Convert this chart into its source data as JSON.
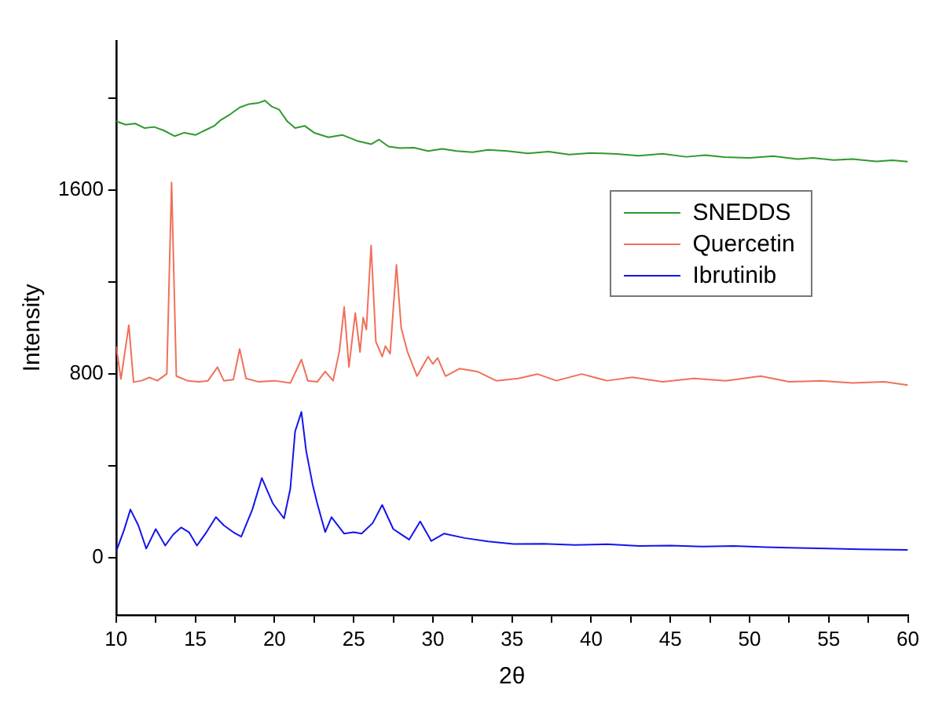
{
  "chart_data": {
    "type": "line",
    "xlabel": "2θ",
    "ylabel": "Intensity",
    "xlim": [
      10,
      60
    ],
    "ylim": [
      -250,
      2250
    ],
    "xticks": [
      10,
      {
        "value": 12.5,
        "label": null
      },
      15,
      {
        "value": 17.5,
        "label": null
      },
      20,
      {
        "value": 22.5,
        "label": null
      },
      25,
      {
        "value": 27.5,
        "label": null
      },
      30,
      {
        "value": 32.5,
        "label": null
      },
      35,
      {
        "value": 37.5,
        "label": null
      },
      40,
      {
        "value": 42.5,
        "label": null
      },
      45,
      {
        "value": 47.5,
        "label": null
      },
      50,
      {
        "value": 52.5,
        "label": null
      },
      55,
      {
        "value": 57.5,
        "label": null
      },
      60
    ],
    "yticks": [
      0,
      {
        "value": 400,
        "label": null
      },
      800,
      {
        "value": 1200,
        "label": null
      },
      1600,
      {
        "value": 2000,
        "label": null
      }
    ],
    "grid": false,
    "legend": "right",
    "marker": "none",
    "line_style": "solid",
    "series": [
      {
        "name": "SNEDDS",
        "color": "#2e9a2e",
        "x": [
          10,
          10.6,
          11.2,
          11.8,
          12.4,
          13,
          13.7,
          14.3,
          15,
          15.6,
          16.2,
          16.6,
          17.2,
          17.8,
          18.4,
          19,
          19.4,
          19.8,
          20.3,
          20.8,
          21.3,
          21.9,
          22.5,
          23.4,
          24.3,
          25.2,
          26.1,
          26.6,
          27.2,
          27.9,
          28.8,
          29.7,
          30.6,
          31.5,
          32.5,
          33.5,
          34.7,
          36,
          37.3,
          38.6,
          40,
          41.6,
          43,
          44.5,
          46,
          47.2,
          48.4,
          50,
          51.5,
          53,
          54,
          55.3,
          56.5,
          58,
          59,
          60
        ],
        "values": [
          1900,
          1885,
          1890,
          1870,
          1875,
          1860,
          1835,
          1850,
          1840,
          1860,
          1880,
          1905,
          1930,
          1960,
          1975,
          1980,
          1990,
          1965,
          1950,
          1900,
          1870,
          1880,
          1850,
          1830,
          1840,
          1815,
          1800,
          1820,
          1790,
          1783,
          1785,
          1770,
          1780,
          1770,
          1765,
          1775,
          1770,
          1760,
          1768,
          1755,
          1762,
          1757,
          1750,
          1758,
          1745,
          1752,
          1744,
          1740,
          1748,
          1735,
          1740,
          1731,
          1735,
          1725,
          1730,
          1724
        ]
      },
      {
        "name": "Quercetin",
        "color": "#f0705a",
        "x": [
          10,
          10.3,
          10.8,
          11.1,
          11.6,
          12.1,
          12.6,
          13.2,
          13.5,
          13.8,
          14.5,
          15.2,
          15.8,
          16.4,
          16.8,
          17.4,
          17.8,
          18.2,
          19,
          20,
          21,
          21.7,
          22.1,
          22.7,
          23.2,
          23.7,
          24.1,
          24.4,
          24.7,
          25.1,
          25.4,
          25.6,
          25.8,
          26.1,
          26.4,
          26.8,
          27,
          27.3,
          27.7,
          28,
          28.4,
          29,
          29.7,
          30,
          30.3,
          30.8,
          31.7,
          32.8,
          34,
          35.4,
          36.6,
          37.8,
          39.4,
          41,
          42.6,
          44.5,
          46.5,
          48.5,
          50.7,
          52.5,
          54.5,
          56.5,
          58.5,
          60
        ],
        "values": [
          920,
          777,
          1012,
          764,
          770,
          784,
          770,
          800,
          1633,
          790,
          770,
          765,
          770,
          829,
          770,
          775,
          908,
          780,
          765,
          770,
          760,
          862,
          770,
          765,
          810,
          770,
          900,
          1091,
          830,
          1065,
          895,
          1045,
          993,
          1359,
          940,
          875,
          921,
          888,
          1274,
          1000,
          895,
          790,
          875,
          843,
          869,
          790,
          823,
          810,
          770,
          780,
          799,
          770,
          799,
          770,
          785,
          765,
          780,
          770,
          790,
          765,
          770,
          760,
          765,
          751
        ]
      },
      {
        "name": "Ibrutinib",
        "color": "#1414ee",
        "x": [
          10,
          10.5,
          10.9,
          11.4,
          11.9,
          12.5,
          13.1,
          13.6,
          14.1,
          14.6,
          15.1,
          15.7,
          16.3,
          16.8,
          17.4,
          17.9,
          18.6,
          19.2,
          19.9,
          20.6,
          21,
          21.3,
          21.7,
          22,
          22.4,
          22.7,
          23.2,
          23.6,
          24.4,
          25,
          25.5,
          26.2,
          26.8,
          27.5,
          28.5,
          29.2,
          29.9,
          30.7,
          32,
          33.5,
          35.1,
          37,
          39,
          41,
          43,
          45,
          47,
          49,
          51,
          53,
          54.9,
          57,
          60
        ],
        "values": [
          26,
          120,
          209,
          140,
          39,
          124,
          52,
          100,
          131,
          110,
          52,
          110,
          176,
          140,
          110,
          91,
          209,
          346,
          235,
          170,
          300,
          549,
          634,
          464,
          320,
          235,
          111,
          176,
          104,
          110,
          104,
          150,
          229,
          124,
          78,
          157,
          72,
          104,
          85,
          70,
          59,
          60,
          55,
          58,
          50,
          52,
          48,
          50,
          45,
          42,
          39,
          36,
          33
        ]
      }
    ]
  }
}
